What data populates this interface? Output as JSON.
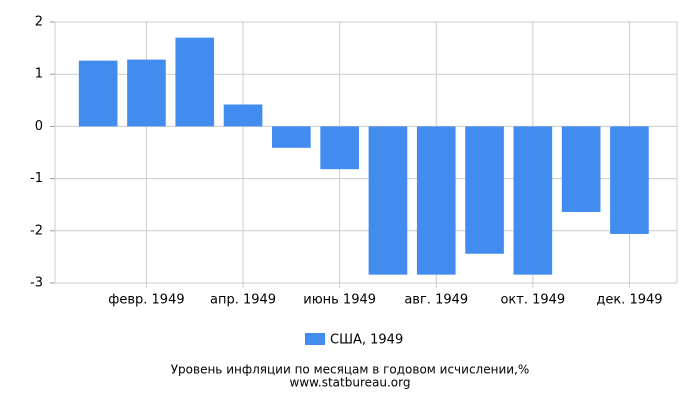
{
  "chart_data": {
    "type": "bar",
    "title": "Уровень инфляции по месяцам в годовом исчислении,%",
    "source": "www.statbureau.org",
    "categories": [
      null,
      "февр. 1949",
      null,
      "апр. 1949",
      null,
      "июнь 1949",
      null,
      "авг. 1949",
      null,
      "окт. 1949",
      null,
      "дек. 1949"
    ],
    "series": [
      {
        "name": "США, 1949",
        "color": "#428bef",
        "values": [
          1.26,
          1.28,
          1.7,
          0.42,
          -0.41,
          -0.82,
          -2.84,
          -2.84,
          -2.44,
          -2.84,
          -1.64,
          -2.06
        ]
      }
    ],
    "ylim": [
      -3,
      2
    ],
    "yticks": [
      -3,
      -2,
      -1,
      0,
      1,
      2
    ],
    "grid": true
  }
}
